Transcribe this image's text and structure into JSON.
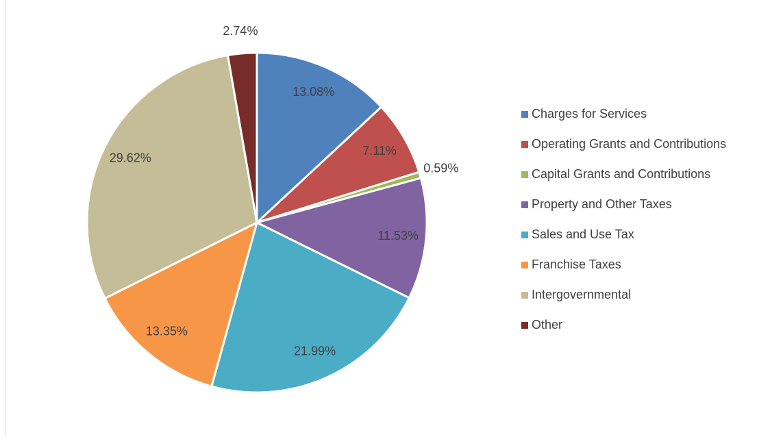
{
  "chart_data": {
    "type": "pie",
    "categories": [
      "Charges for Services",
      "Operating Grants and Contributions",
      "Capital Grants and Contributions",
      "Property and Other Taxes",
      "Sales and Use Tax",
      "Franchise Taxes",
      "Intergovernmental",
      "Other"
    ],
    "values": [
      13.08,
      7.11,
      0.59,
      11.53,
      21.99,
      13.35,
      29.62,
      2.74
    ],
    "value_labels": [
      "13.08%",
      "7.11%",
      "0.59%",
      "11.53%",
      "21.99%",
      "13.35%",
      "29.62%",
      "2.74%"
    ],
    "colors": [
      "#4f81bd",
      "#c0504d",
      "#9bbb59",
      "#8064a2",
      "#4bacc6",
      "#f79646",
      "#c4bd97",
      "#772c2a"
    ],
    "legend": "right"
  }
}
